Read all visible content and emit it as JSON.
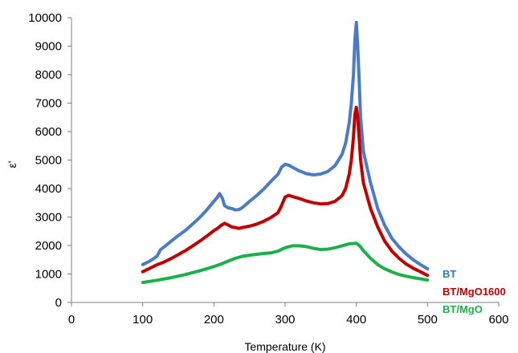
{
  "chart_data": {
    "type": "line",
    "title": "",
    "xlabel": "Temperature (K)",
    "ylabel": "ε'",
    "xlim": [
      0,
      600
    ],
    "ylim": [
      0,
      10000
    ],
    "x_ticks": [
      "0",
      "100",
      "200",
      "300",
      "400",
      "500",
      "600"
    ],
    "y_ticks": [
      "0",
      "1000",
      "2000",
      "3000",
      "4000",
      "5000",
      "6000",
      "7000",
      "8000",
      "9000",
      "10000"
    ],
    "grid": false,
    "legend_position": "right",
    "series": [
      {
        "name": "BT",
        "color": "#4a7bc4",
        "legend_color": "#2e75c0",
        "points": [
          [
            100,
            1330
          ],
          [
            110,
            1450
          ],
          [
            120,
            1620
          ],
          [
            125,
            1850
          ],
          [
            130,
            1950
          ],
          [
            140,
            2150
          ],
          [
            150,
            2350
          ],
          [
            160,
            2530
          ],
          [
            170,
            2750
          ],
          [
            180,
            2980
          ],
          [
            190,
            3250
          ],
          [
            200,
            3550
          ],
          [
            205,
            3700
          ],
          [
            208,
            3820
          ],
          [
            212,
            3650
          ],
          [
            215,
            3400
          ],
          [
            220,
            3320
          ],
          [
            225,
            3300
          ],
          [
            230,
            3250
          ],
          [
            235,
            3260
          ],
          [
            240,
            3330
          ],
          [
            250,
            3550
          ],
          [
            260,
            3750
          ],
          [
            270,
            3980
          ],
          [
            280,
            4250
          ],
          [
            290,
            4500
          ],
          [
            295,
            4750
          ],
          [
            300,
            4850
          ],
          [
            305,
            4820
          ],
          [
            310,
            4750
          ],
          [
            320,
            4620
          ],
          [
            330,
            4520
          ],
          [
            340,
            4480
          ],
          [
            350,
            4510
          ],
          [
            360,
            4600
          ],
          [
            370,
            4800
          ],
          [
            380,
            5200
          ],
          [
            385,
            5600
          ],
          [
            390,
            6300
          ],
          [
            393,
            7000
          ],
          [
            396,
            8000
          ],
          [
            398,
            9200
          ],
          [
            400,
            9830
          ],
          [
            402,
            9000
          ],
          [
            404,
            7800
          ],
          [
            406,
            6500
          ],
          [
            410,
            5300
          ],
          [
            420,
            4200
          ],
          [
            430,
            3300
          ],
          [
            440,
            2700
          ],
          [
            450,
            2250
          ],
          [
            460,
            1950
          ],
          [
            470,
            1700
          ],
          [
            480,
            1500
          ],
          [
            490,
            1330
          ],
          [
            500,
            1180
          ]
        ]
      },
      {
        "name": "BT/MgO1600",
        "color": "#c00000",
        "legend_color": "#c00000",
        "points": [
          [
            100,
            1080
          ],
          [
            110,
            1200
          ],
          [
            120,
            1320
          ],
          [
            130,
            1420
          ],
          [
            140,
            1540
          ],
          [
            150,
            1680
          ],
          [
            160,
            1820
          ],
          [
            170,
            1980
          ],
          [
            180,
            2150
          ],
          [
            190,
            2330
          ],
          [
            200,
            2520
          ],
          [
            205,
            2600
          ],
          [
            210,
            2700
          ],
          [
            215,
            2780
          ],
          [
            220,
            2720
          ],
          [
            225,
            2650
          ],
          [
            230,
            2630
          ],
          [
            235,
            2600
          ],
          [
            240,
            2630
          ],
          [
            250,
            2680
          ],
          [
            260,
            2750
          ],
          [
            270,
            2850
          ],
          [
            280,
            2980
          ],
          [
            290,
            3150
          ],
          [
            295,
            3400
          ],
          [
            300,
            3700
          ],
          [
            305,
            3760
          ],
          [
            310,
            3720
          ],
          [
            320,
            3650
          ],
          [
            330,
            3560
          ],
          [
            340,
            3500
          ],
          [
            350,
            3460
          ],
          [
            360,
            3470
          ],
          [
            370,
            3550
          ],
          [
            380,
            3750
          ],
          [
            385,
            4000
          ],
          [
            390,
            4500
          ],
          [
            393,
            5000
          ],
          [
            396,
            5800
          ],
          [
            398,
            6600
          ],
          [
            400,
            6850
          ],
          [
            402,
            6500
          ],
          [
            404,
            5800
          ],
          [
            406,
            5000
          ],
          [
            410,
            4200
          ],
          [
            420,
            3300
          ],
          [
            430,
            2650
          ],
          [
            440,
            2150
          ],
          [
            450,
            1800
          ],
          [
            460,
            1550
          ],
          [
            470,
            1350
          ],
          [
            480,
            1200
          ],
          [
            490,
            1080
          ],
          [
            500,
            950
          ]
        ]
      },
      {
        "name": "BT/MgO",
        "color": "#1cb04a",
        "legend_color": "#1cb04a",
        "points": [
          [
            100,
            700
          ],
          [
            120,
            780
          ],
          [
            140,
            870
          ],
          [
            160,
            980
          ],
          [
            180,
            1110
          ],
          [
            200,
            1260
          ],
          [
            210,
            1350
          ],
          [
            220,
            1450
          ],
          [
            230,
            1550
          ],
          [
            240,
            1620
          ],
          [
            250,
            1660
          ],
          [
            260,
            1690
          ],
          [
            270,
            1720
          ],
          [
            280,
            1740
          ],
          [
            290,
            1800
          ],
          [
            300,
            1920
          ],
          [
            310,
            1990
          ],
          [
            320,
            1990
          ],
          [
            330,
            1960
          ],
          [
            340,
            1900
          ],
          [
            350,
            1860
          ],
          [
            360,
            1870
          ],
          [
            370,
            1920
          ],
          [
            380,
            1990
          ],
          [
            390,
            2060
          ],
          [
            400,
            2080
          ],
          [
            405,
            1980
          ],
          [
            410,
            1820
          ],
          [
            420,
            1550
          ],
          [
            430,
            1330
          ],
          [
            440,
            1180
          ],
          [
            450,
            1070
          ],
          [
            460,
            980
          ],
          [
            470,
            920
          ],
          [
            480,
            870
          ],
          [
            490,
            830
          ],
          [
            500,
            790
          ]
        ]
      }
    ]
  }
}
